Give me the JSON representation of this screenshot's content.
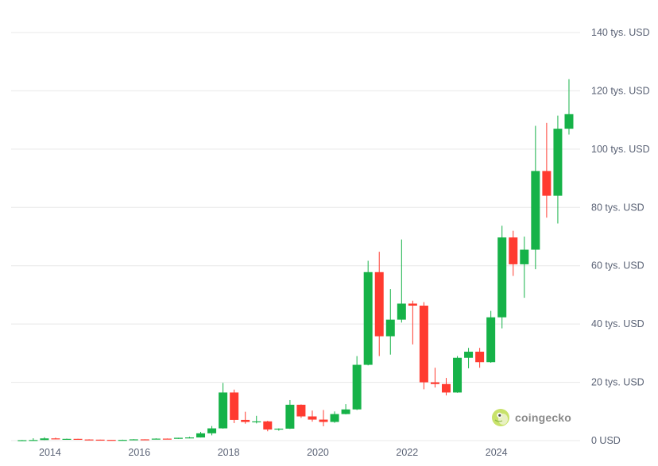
{
  "colors": {
    "up": "#16b248",
    "down": "#ff3b30",
    "grid": "#e8e8e8",
    "label": "#5a6275"
  },
  "brand": {
    "name": "coingecko",
    "logo_icon": "gecko-logo-icon"
  },
  "chart_data": {
    "type": "candlestick",
    "title": "",
    "xlabel": "",
    "ylabel": "",
    "y_ticks": [
      {
        "value": 0,
        "label": "0 USD"
      },
      {
        "value": 20000,
        "label": "20 tys. USD"
      },
      {
        "value": 40000,
        "label": "40 tys. USD"
      },
      {
        "value": 60000,
        "label": "60 tys. USD"
      },
      {
        "value": 80000,
        "label": "80 tys. USD"
      },
      {
        "value": 100000,
        "label": "100 tys. USD"
      },
      {
        "value": 120000,
        "label": "120 tys. USD"
      },
      {
        "value": 140000,
        "label": "140 tys. USD"
      }
    ],
    "x_ticks": [
      {
        "value": 2014,
        "label": "2014"
      },
      {
        "value": 2016,
        "label": "2016"
      },
      {
        "value": 2018,
        "label": "2018"
      },
      {
        "value": 2020,
        "label": "2020"
      },
      {
        "value": 2022,
        "label": "2022"
      },
      {
        "value": 2024,
        "label": "2024"
      }
    ],
    "xlim": [
      2013.2,
      2025.75
    ],
    "ylim": [
      0,
      140000
    ],
    "grid": true,
    "axis_position": "right",
    "candles": [
      {
        "t": 2013.375,
        "o": 130,
        "h": 220,
        "l": 70,
        "c": 140
      },
      {
        "t": 2013.625,
        "o": 140,
        "h": 800,
        "l": 90,
        "c": 200
      },
      {
        "t": 2013.875,
        "o": 200,
        "h": 1150,
        "l": 190,
        "c": 750
      },
      {
        "t": 2014.125,
        "o": 750,
        "h": 1000,
        "l": 420,
        "c": 500
      },
      {
        "t": 2014.375,
        "o": 500,
        "h": 680,
        "l": 430,
        "c": 600
      },
      {
        "t": 2014.625,
        "o": 600,
        "h": 620,
        "l": 330,
        "c": 380
      },
      {
        "t": 2014.875,
        "o": 380,
        "h": 460,
        "l": 300,
        "c": 320
      },
      {
        "t": 2015.125,
        "o": 320,
        "h": 320,
        "l": 170,
        "c": 245
      },
      {
        "t": 2015.375,
        "o": 245,
        "h": 260,
        "l": 220,
        "c": 240
      },
      {
        "t": 2015.625,
        "o": 240,
        "h": 320,
        "l": 200,
        "c": 240
      },
      {
        "t": 2015.875,
        "o": 240,
        "h": 500,
        "l": 230,
        "c": 430
      },
      {
        "t": 2016.125,
        "o": 430,
        "h": 450,
        "l": 360,
        "c": 420
      },
      {
        "t": 2016.375,
        "o": 420,
        "h": 780,
        "l": 400,
        "c": 670
      },
      {
        "t": 2016.625,
        "o": 670,
        "h": 730,
        "l": 570,
        "c": 610
      },
      {
        "t": 2016.875,
        "o": 610,
        "h": 980,
        "l": 600,
        "c": 960
      },
      {
        "t": 2017.125,
        "o": 960,
        "h": 1300,
        "l": 780,
        "c": 1080
      },
      {
        "t": 2017.375,
        "o": 1080,
        "h": 3000,
        "l": 1050,
        "c": 2500
      },
      {
        "t": 2017.625,
        "o": 2500,
        "h": 5000,
        "l": 1800,
        "c": 4200
      },
      {
        "t": 2017.875,
        "o": 4200,
        "h": 19800,
        "l": 4100,
        "c": 16500
      },
      {
        "t": 2018.125,
        "o": 16500,
        "h": 17500,
        "l": 6000,
        "c": 7100
      },
      {
        "t": 2018.375,
        "o": 7100,
        "h": 9900,
        "l": 5800,
        "c": 6400
      },
      {
        "t": 2018.625,
        "o": 6400,
        "h": 8500,
        "l": 5900,
        "c": 6600
      },
      {
        "t": 2018.875,
        "o": 6600,
        "h": 6800,
        "l": 3200,
        "c": 3800
      },
      {
        "t": 2019.125,
        "o": 3800,
        "h": 4200,
        "l": 3400,
        "c": 4100
      },
      {
        "t": 2019.375,
        "o": 4100,
        "h": 13900,
        "l": 4000,
        "c": 12300
      },
      {
        "t": 2019.625,
        "o": 12300,
        "h": 12400,
        "l": 7800,
        "c": 8300
      },
      {
        "t": 2019.875,
        "o": 8300,
        "h": 10300,
        "l": 6500,
        "c": 7200
      },
      {
        "t": 2020.125,
        "o": 7200,
        "h": 10500,
        "l": 4900,
        "c": 6400
      },
      {
        "t": 2020.375,
        "o": 6400,
        "h": 10000,
        "l": 6100,
        "c": 9100
      },
      {
        "t": 2020.625,
        "o": 9100,
        "h": 12500,
        "l": 9000,
        "c": 10700
      },
      {
        "t": 2020.875,
        "o": 10700,
        "h": 29000,
        "l": 10500,
        "c": 26000
      },
      {
        "t": 2021.125,
        "o": 26000,
        "h": 61700,
        "l": 25800,
        "c": 57800
      },
      {
        "t": 2021.375,
        "o": 57800,
        "h": 64800,
        "l": 29000,
        "c": 35800
      },
      {
        "t": 2021.625,
        "o": 35800,
        "h": 52000,
        "l": 29500,
        "c": 41500
      },
      {
        "t": 2021.875,
        "o": 41500,
        "h": 69000,
        "l": 40500,
        "c": 47000
      },
      {
        "t": 2022.125,
        "o": 47000,
        "h": 48000,
        "l": 33000,
        "c": 46300
      },
      {
        "t": 2022.375,
        "o": 46300,
        "h": 47500,
        "l": 17600,
        "c": 20000
      },
      {
        "t": 2022.625,
        "o": 20000,
        "h": 25000,
        "l": 18200,
        "c": 19400
      },
      {
        "t": 2022.875,
        "o": 19400,
        "h": 21500,
        "l": 15500,
        "c": 16500
      },
      {
        "t": 2023.125,
        "o": 16500,
        "h": 29000,
        "l": 16400,
        "c": 28400
      },
      {
        "t": 2023.375,
        "o": 28400,
        "h": 31800,
        "l": 24800,
        "c": 30500
      },
      {
        "t": 2023.625,
        "o": 30500,
        "h": 31800,
        "l": 25000,
        "c": 26900
      },
      {
        "t": 2023.875,
        "o": 26900,
        "h": 44500,
        "l": 26700,
        "c": 42300
      },
      {
        "t": 2024.125,
        "o": 42300,
        "h": 73700,
        "l": 38500,
        "c": 69700
      },
      {
        "t": 2024.375,
        "o": 69700,
        "h": 72000,
        "l": 56500,
        "c": 60500
      },
      {
        "t": 2024.625,
        "o": 60500,
        "h": 70000,
        "l": 49000,
        "c": 65500
      },
      {
        "t": 2024.875,
        "o": 65500,
        "h": 108000,
        "l": 58800,
        "c": 92500
      },
      {
        "t": 2025.125,
        "o": 92500,
        "h": 109000,
        "l": 76500,
        "c": 84000
      },
      {
        "t": 2025.375,
        "o": 84000,
        "h": 111500,
        "l": 74500,
        "c": 107000
      },
      {
        "t": 2025.625,
        "o": 107000,
        "h": 124000,
        "l": 105000,
        "c": 112000
      }
    ]
  }
}
